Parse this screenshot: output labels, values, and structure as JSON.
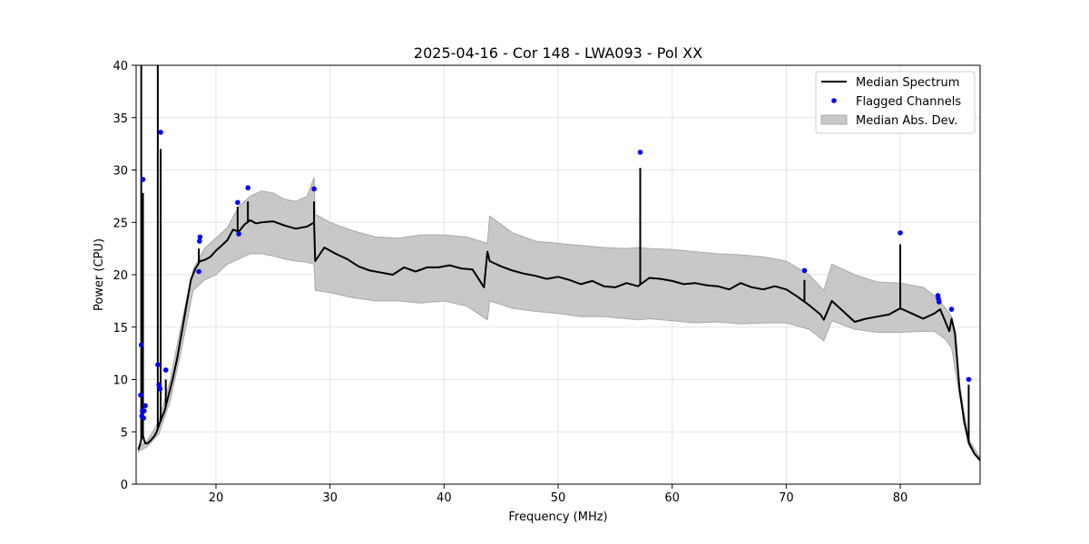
{
  "chart_data": {
    "type": "line",
    "title": "2025-04-16 - Cor 148 - LWA093 - Pol XX",
    "xlabel": "Frequency (MHz)",
    "ylabel": "Power (CPU)",
    "xlim": [
      13.0,
      87.0
    ],
    "ylim": [
      0,
      40
    ],
    "xticks": [
      20,
      30,
      40,
      50,
      60,
      70,
      80
    ],
    "yticks": [
      0,
      5,
      10,
      15,
      20,
      25,
      30,
      35,
      40
    ],
    "grid": true,
    "legend_position": "top-right",
    "legend": [
      {
        "label": "Median Spectrum",
        "kind": "line",
        "color": "#000000"
      },
      {
        "label": "Flagged Channels",
        "kind": "marker",
        "color": "#0000ff"
      },
      {
        "label": "Median Abs. Dev.",
        "kind": "band",
        "color": "#c8c8c8"
      }
    ],
    "series": [
      {
        "name": "Median Spectrum",
        "color": "#000000",
        "x": [
          13.2,
          13.4,
          13.5,
          13.6,
          13.7,
          13.8,
          14.0,
          14.3,
          14.6,
          14.8,
          15.0,
          15.2,
          15.5,
          15.8,
          16.2,
          16.6,
          17.0,
          17.4,
          17.8,
          18.2,
          18.6,
          19.0,
          19.5,
          20.0,
          20.5,
          21.0,
          21.5,
          22.0,
          22.5,
          23.0,
          23.5,
          24.0,
          25.0,
          26.0,
          27.0,
          28.0,
          28.6,
          28.7,
          29.5,
          30.5,
          31.5,
          32.5,
          33.5,
          34.5,
          35.5,
          36.5,
          37.5,
          38.5,
          39.5,
          40.5,
          41.5,
          42.5,
          43.5,
          43.8,
          44.0,
          45.0,
          46.0,
          47.0,
          48.0,
          49.0,
          50.0,
          51.0,
          52.0,
          53.0,
          54.0,
          55.0,
          56.0,
          57.0,
          58.0,
          59.0,
          60.0,
          61.0,
          62.0,
          63.0,
          64.0,
          65.0,
          66.0,
          67.0,
          68.0,
          69.0,
          70.0,
          71.0,
          72.0,
          73.0,
          73.3,
          74.0,
          75.0,
          76.0,
          77.0,
          78.0,
          79.0,
          80.0,
          81.0,
          82.0,
          83.0,
          83.5,
          84.0,
          84.3,
          84.5,
          84.8,
          85.2,
          85.6,
          86.0,
          86.5,
          87.0
        ],
        "values": [
          3.3,
          4.0,
          4.5,
          4.7,
          4.2,
          3.9,
          3.9,
          4.2,
          4.6,
          5.0,
          5.6,
          6.2,
          7.0,
          8.3,
          10.0,
          12.0,
          14.5,
          17.0,
          19.5,
          20.6,
          21.3,
          21.4,
          21.7,
          22.3,
          22.8,
          23.3,
          24.3,
          24.1,
          24.8,
          25.2,
          24.9,
          25.0,
          25.1,
          24.7,
          24.4,
          24.6,
          25.0,
          21.3,
          22.6,
          22.0,
          21.5,
          20.8,
          20.4,
          20.2,
          20.0,
          20.7,
          20.3,
          20.7,
          20.7,
          20.9,
          20.6,
          20.5,
          18.8,
          22.2,
          21.3,
          20.8,
          20.4,
          20.1,
          19.9,
          19.6,
          19.8,
          19.5,
          19.1,
          19.4,
          18.9,
          18.8,
          19.2,
          18.9,
          19.7,
          19.6,
          19.4,
          19.1,
          19.2,
          19.0,
          18.9,
          18.6,
          19.2,
          18.8,
          18.6,
          18.9,
          18.6,
          17.9,
          17.1,
          16.2,
          15.7,
          17.5,
          16.5,
          15.5,
          15.8,
          16.0,
          16.2,
          16.8,
          16.3,
          15.8,
          16.3,
          16.7,
          15.4,
          14.6,
          15.8,
          14.4,
          9.0,
          6.0,
          4.0,
          2.9,
          2.3
        ]
      }
    ],
    "spikes": [
      {
        "x": 13.45,
        "y": 40.0
      },
      {
        "x": 13.6,
        "y": 27.8
      },
      {
        "x": 14.9,
        "y": 40.0
      },
      {
        "x": 15.15,
        "y": 32.0
      },
      {
        "x": 15.6,
        "y": 10.0
      },
      {
        "x": 18.5,
        "y": 22.5
      },
      {
        "x": 21.9,
        "y": 26.5
      },
      {
        "x": 22.8,
        "y": 27.0
      },
      {
        "x": 28.6,
        "y": 27.0
      },
      {
        "x": 57.2,
        "y": 30.2
      },
      {
        "x": 71.6,
        "y": 19.5
      },
      {
        "x": 80.0,
        "y": 22.9
      },
      {
        "x": 86.0,
        "y": 9.5
      }
    ],
    "band": {
      "name": "Median Abs. Dev.",
      "color": "#c8c8c8",
      "x": [
        13.2,
        14.0,
        15.0,
        16.0,
        17.0,
        18.0,
        19.0,
        20.0,
        21.0,
        22.0,
        23.0,
        24.0,
        25.0,
        26.0,
        27.0,
        28.0,
        28.6,
        28.7,
        30.0,
        32.0,
        34.0,
        36.0,
        38.0,
        40.0,
        42.0,
        43.8,
        44.0,
        46.0,
        48.0,
        50.0,
        52.0,
        54.0,
        56.0,
        57.0,
        58.0,
        60.0,
        62.0,
        64.0,
        66.0,
        68.0,
        70.0,
        72.0,
        73.3,
        74.0,
        76.0,
        78.0,
        80.0,
        82.0,
        83.0,
        84.0,
        84.5,
        85.2,
        86.0,
        87.0
      ],
      "upper": [
        3.5,
        4.2,
        6.0,
        10.0,
        15.5,
        20.5,
        22.5,
        23.5,
        24.5,
        26.5,
        27.5,
        28.0,
        27.8,
        27.2,
        27.0,
        27.5,
        29.3,
        25.8,
        25.0,
        24.2,
        23.6,
        23.5,
        23.8,
        23.8,
        23.6,
        23.0,
        25.6,
        24.0,
        23.2,
        23.0,
        22.8,
        22.6,
        22.5,
        22.6,
        22.5,
        22.4,
        22.2,
        22.0,
        21.9,
        21.7,
        21.3,
        20.0,
        18.5,
        21.0,
        20.0,
        19.3,
        19.2,
        18.8,
        18.0,
        16.8,
        16.0,
        9.5,
        4.3,
        2.5
      ],
      "lower": [
        3.1,
        3.6,
        4.8,
        8.0,
        13.0,
        18.5,
        19.5,
        20.0,
        21.0,
        21.5,
        22.0,
        22.0,
        21.8,
        21.5,
        21.3,
        21.2,
        21.0,
        18.5,
        18.3,
        17.8,
        17.5,
        17.5,
        17.3,
        17.5,
        17.0,
        15.7,
        17.5,
        16.8,
        16.5,
        16.3,
        16.0,
        16.0,
        15.8,
        15.7,
        15.8,
        15.6,
        15.4,
        15.5,
        15.3,
        15.4,
        15.4,
        14.8,
        13.7,
        15.6,
        14.8,
        14.5,
        14.5,
        14.6,
        14.6,
        13.8,
        13.0,
        8.5,
        3.7,
        2.1
      ]
    },
    "flagged_channels": {
      "name": "Flagged Channels",
      "color": "#0000ff",
      "x": [
        13.4,
        13.45,
        13.5,
        13.55,
        13.6,
        13.65,
        13.7,
        13.8,
        14.9,
        15.0,
        15.1,
        15.15,
        15.6,
        18.5,
        18.55,
        18.6,
        21.9,
        22.0,
        22.8,
        28.6,
        57.2,
        71.6,
        80.0,
        83.3,
        83.35,
        83.4,
        84.5,
        86.0
      ],
      "y": [
        8.5,
        13.3,
        6.5,
        7.0,
        29.1,
        6.3,
        7.0,
        7.5,
        11.4,
        9.5,
        9.1,
        33.6,
        10.9,
        20.3,
        23.2,
        23.6,
        26.9,
        23.9,
        28.3,
        28.2,
        31.7,
        20.4,
        24.0,
        18.0,
        17.7,
        17.4,
        16.7,
        10.0
      ]
    }
  }
}
